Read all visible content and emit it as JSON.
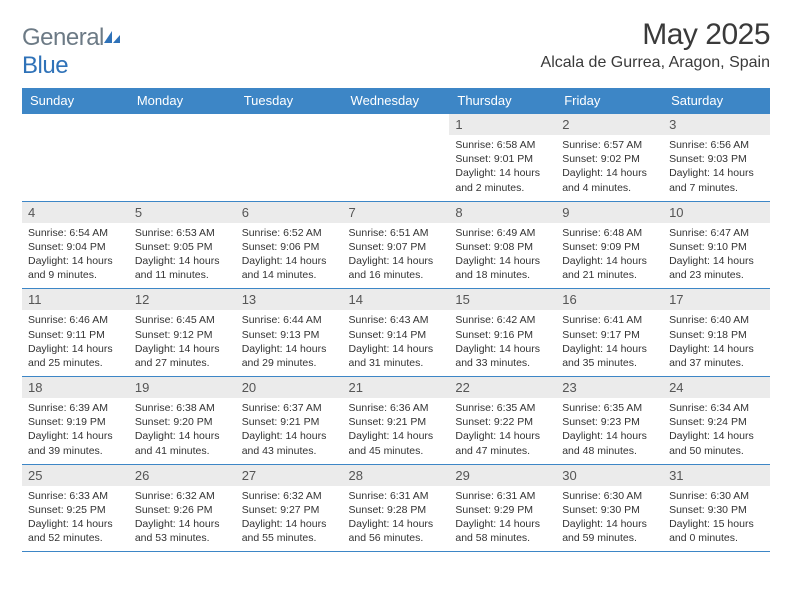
{
  "logo": {
    "part1": "General",
    "part2": "Blue"
  },
  "title": "May 2025",
  "location": "Alcala de Gurrea, Aragon, Spain",
  "colors": {
    "header_blue": "#3d86c6",
    "logo_blue": "#2f72b8",
    "logo_gray": "#6c7a85",
    "row_gray": "#ebebeb",
    "text": "#333333",
    "border": "#3d86c6",
    "background": "#ffffff"
  },
  "font": {
    "family": "Arial",
    "title_size": 30,
    "location_size": 16,
    "header_size": 13,
    "daynum_size": 13,
    "body_size": 10.5
  },
  "day_headers": [
    "Sunday",
    "Monday",
    "Tuesday",
    "Wednesday",
    "Thursday",
    "Friday",
    "Saturday"
  ],
  "weeks": [
    [
      {
        "num": "",
        "sunrise": "",
        "sunset": "",
        "daylight": ""
      },
      {
        "num": "",
        "sunrise": "",
        "sunset": "",
        "daylight": ""
      },
      {
        "num": "",
        "sunrise": "",
        "sunset": "",
        "daylight": ""
      },
      {
        "num": "",
        "sunrise": "",
        "sunset": "",
        "daylight": ""
      },
      {
        "num": "1",
        "sunrise": "Sunrise: 6:58 AM",
        "sunset": "Sunset: 9:01 PM",
        "daylight": "Daylight: 14 hours and 2 minutes."
      },
      {
        "num": "2",
        "sunrise": "Sunrise: 6:57 AM",
        "sunset": "Sunset: 9:02 PM",
        "daylight": "Daylight: 14 hours and 4 minutes."
      },
      {
        "num": "3",
        "sunrise": "Sunrise: 6:56 AM",
        "sunset": "Sunset: 9:03 PM",
        "daylight": "Daylight: 14 hours and 7 minutes."
      }
    ],
    [
      {
        "num": "4",
        "sunrise": "Sunrise: 6:54 AM",
        "sunset": "Sunset: 9:04 PM",
        "daylight": "Daylight: 14 hours and 9 minutes."
      },
      {
        "num": "5",
        "sunrise": "Sunrise: 6:53 AM",
        "sunset": "Sunset: 9:05 PM",
        "daylight": "Daylight: 14 hours and 11 minutes."
      },
      {
        "num": "6",
        "sunrise": "Sunrise: 6:52 AM",
        "sunset": "Sunset: 9:06 PM",
        "daylight": "Daylight: 14 hours and 14 minutes."
      },
      {
        "num": "7",
        "sunrise": "Sunrise: 6:51 AM",
        "sunset": "Sunset: 9:07 PM",
        "daylight": "Daylight: 14 hours and 16 minutes."
      },
      {
        "num": "8",
        "sunrise": "Sunrise: 6:49 AM",
        "sunset": "Sunset: 9:08 PM",
        "daylight": "Daylight: 14 hours and 18 minutes."
      },
      {
        "num": "9",
        "sunrise": "Sunrise: 6:48 AM",
        "sunset": "Sunset: 9:09 PM",
        "daylight": "Daylight: 14 hours and 21 minutes."
      },
      {
        "num": "10",
        "sunrise": "Sunrise: 6:47 AM",
        "sunset": "Sunset: 9:10 PM",
        "daylight": "Daylight: 14 hours and 23 minutes."
      }
    ],
    [
      {
        "num": "11",
        "sunrise": "Sunrise: 6:46 AM",
        "sunset": "Sunset: 9:11 PM",
        "daylight": "Daylight: 14 hours and 25 minutes."
      },
      {
        "num": "12",
        "sunrise": "Sunrise: 6:45 AM",
        "sunset": "Sunset: 9:12 PM",
        "daylight": "Daylight: 14 hours and 27 minutes."
      },
      {
        "num": "13",
        "sunrise": "Sunrise: 6:44 AM",
        "sunset": "Sunset: 9:13 PM",
        "daylight": "Daylight: 14 hours and 29 minutes."
      },
      {
        "num": "14",
        "sunrise": "Sunrise: 6:43 AM",
        "sunset": "Sunset: 9:14 PM",
        "daylight": "Daylight: 14 hours and 31 minutes."
      },
      {
        "num": "15",
        "sunrise": "Sunrise: 6:42 AM",
        "sunset": "Sunset: 9:16 PM",
        "daylight": "Daylight: 14 hours and 33 minutes."
      },
      {
        "num": "16",
        "sunrise": "Sunrise: 6:41 AM",
        "sunset": "Sunset: 9:17 PM",
        "daylight": "Daylight: 14 hours and 35 minutes."
      },
      {
        "num": "17",
        "sunrise": "Sunrise: 6:40 AM",
        "sunset": "Sunset: 9:18 PM",
        "daylight": "Daylight: 14 hours and 37 minutes."
      }
    ],
    [
      {
        "num": "18",
        "sunrise": "Sunrise: 6:39 AM",
        "sunset": "Sunset: 9:19 PM",
        "daylight": "Daylight: 14 hours and 39 minutes."
      },
      {
        "num": "19",
        "sunrise": "Sunrise: 6:38 AM",
        "sunset": "Sunset: 9:20 PM",
        "daylight": "Daylight: 14 hours and 41 minutes."
      },
      {
        "num": "20",
        "sunrise": "Sunrise: 6:37 AM",
        "sunset": "Sunset: 9:21 PM",
        "daylight": "Daylight: 14 hours and 43 minutes."
      },
      {
        "num": "21",
        "sunrise": "Sunrise: 6:36 AM",
        "sunset": "Sunset: 9:21 PM",
        "daylight": "Daylight: 14 hours and 45 minutes."
      },
      {
        "num": "22",
        "sunrise": "Sunrise: 6:35 AM",
        "sunset": "Sunset: 9:22 PM",
        "daylight": "Daylight: 14 hours and 47 minutes."
      },
      {
        "num": "23",
        "sunrise": "Sunrise: 6:35 AM",
        "sunset": "Sunset: 9:23 PM",
        "daylight": "Daylight: 14 hours and 48 minutes."
      },
      {
        "num": "24",
        "sunrise": "Sunrise: 6:34 AM",
        "sunset": "Sunset: 9:24 PM",
        "daylight": "Daylight: 14 hours and 50 minutes."
      }
    ],
    [
      {
        "num": "25",
        "sunrise": "Sunrise: 6:33 AM",
        "sunset": "Sunset: 9:25 PM",
        "daylight": "Daylight: 14 hours and 52 minutes."
      },
      {
        "num": "26",
        "sunrise": "Sunrise: 6:32 AM",
        "sunset": "Sunset: 9:26 PM",
        "daylight": "Daylight: 14 hours and 53 minutes."
      },
      {
        "num": "27",
        "sunrise": "Sunrise: 6:32 AM",
        "sunset": "Sunset: 9:27 PM",
        "daylight": "Daylight: 14 hours and 55 minutes."
      },
      {
        "num": "28",
        "sunrise": "Sunrise: 6:31 AM",
        "sunset": "Sunset: 9:28 PM",
        "daylight": "Daylight: 14 hours and 56 minutes."
      },
      {
        "num": "29",
        "sunrise": "Sunrise: 6:31 AM",
        "sunset": "Sunset: 9:29 PM",
        "daylight": "Daylight: 14 hours and 58 minutes."
      },
      {
        "num": "30",
        "sunrise": "Sunrise: 6:30 AM",
        "sunset": "Sunset: 9:30 PM",
        "daylight": "Daylight: 14 hours and 59 minutes."
      },
      {
        "num": "31",
        "sunrise": "Sunrise: 6:30 AM",
        "sunset": "Sunset: 9:30 PM",
        "daylight": "Daylight: 15 hours and 0 minutes."
      }
    ]
  ]
}
